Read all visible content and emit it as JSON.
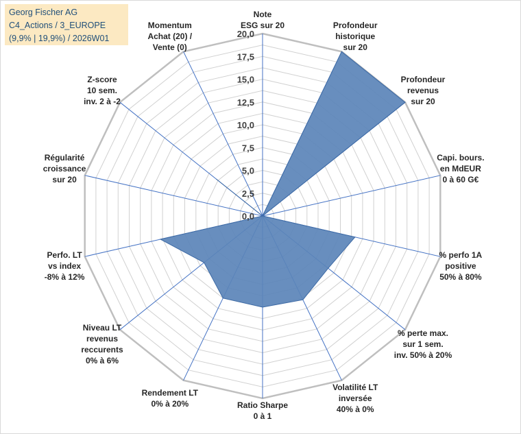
{
  "title_box": {
    "line1": "Georg Fischer AG",
    "line2": "C4_Actions / 3_EUROPE",
    "line3": "(9,9% | 19,9%) / 2026W01"
  },
  "colors": {
    "fill": "#5b84b8",
    "stroke": "#3d6aa5",
    "grid": "#d0d0d0",
    "outer_ring": "#bfbfbf",
    "spoke": "#4472c4",
    "title_bg": "#fce9c2",
    "title_text": "#1f4e79"
  },
  "chart_data": {
    "type": "radar",
    "title": "",
    "rmax": 20,
    "tick_step": 1.25,
    "tick_labels": [
      "0,0",
      "2,5",
      "5,0",
      "7,5",
      "10,0",
      "12,5",
      "15,0",
      "17,5",
      "20,0"
    ],
    "grid": true,
    "axes": [
      [
        "Note",
        "ESG sur 20"
      ],
      [
        "Profondeur",
        "historique",
        "sur 20"
      ],
      [
        "Profondeur",
        "revenus",
        "sur 20"
      ],
      [
        "Capi. bours.",
        "en MdEUR",
        "0 à 60 G€"
      ],
      [
        "% perfo 1A",
        "positive",
        "50% à 80%"
      ],
      [
        "% perte max.",
        "sur 1 sem.",
        "inv. 50% à 20%"
      ],
      [
        "Volatilité LT",
        "inversée",
        "40% à 0%"
      ],
      [
        "Ratio Sharpe",
        "0 à 1"
      ],
      [
        "Rendement LT",
        "0% à 20%"
      ],
      [
        "Niveau LT",
        "revenus",
        "reccurents",
        "0% à 6%"
      ],
      [
        "Perfo. LT",
        "vs index",
        "-8% à 12%"
      ],
      [
        "Régularité",
        "croissance",
        "sur 20"
      ],
      [
        "Z-score",
        "10 sem.",
        "inv. 2 à -2"
      ],
      [
        "Momentum",
        "Achat (20) /",
        "Vente (0)"
      ]
    ],
    "values": [
      0,
      20,
      20,
      0,
      10.4,
      9.2,
      10.2,
      10,
      10,
      8.2,
      11.5,
      0,
      6.5,
      0
    ]
  }
}
